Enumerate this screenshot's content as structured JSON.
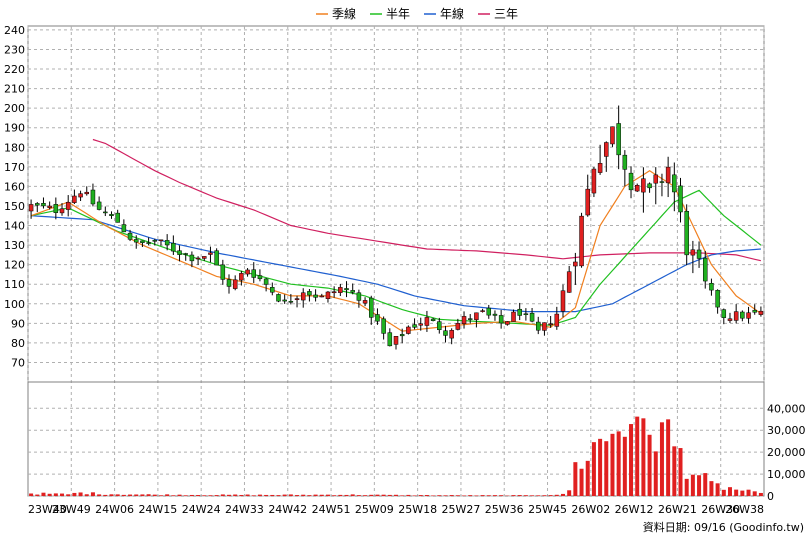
{
  "chart_data": {
    "type": "candlestick",
    "legend": [
      {
        "name": "季線",
        "color": "#f08020"
      },
      {
        "name": "半年",
        "color": "#20c020"
      },
      {
        "name": "年線",
        "color": "#2060d0"
      },
      {
        "name": "三年",
        "color": "#d02060"
      }
    ],
    "price_axis": {
      "ylim": [
        60,
        242
      ],
      "ticks": [
        70,
        80,
        90,
        100,
        110,
        120,
        130,
        140,
        150,
        160,
        170,
        180,
        190,
        200,
        210,
        220,
        230,
        240
      ]
    },
    "volume_axis": {
      "ylim": [
        0,
        52000
      ],
      "ticks": [
        0,
        10000,
        20000,
        30000,
        40000
      ],
      "tick_labels": [
        "0",
        "10,000",
        "20,000",
        "30,000",
        "40,000"
      ]
    },
    "x_ticks": [
      "23W40",
      "23W49",
      "24W06",
      "24W15",
      "24W24",
      "24W33",
      "24W42",
      "24W51",
      "25W09",
      "25W18",
      "25W27",
      "25W36",
      "25W45",
      "26W02",
      "26W12",
      "26W21",
      "26W30",
      "26W38"
    ],
    "grid": true,
    "colors": {
      "up": "#e02020",
      "down": "#20b020",
      "volume": "#e02020",
      "grid": "#b0b0b0"
    },
    "close_anchors": [
      [
        0,
        150
      ],
      [
        4,
        148
      ],
      [
        8,
        158
      ],
      [
        11,
        148
      ],
      [
        14,
        142
      ],
      [
        17,
        130
      ],
      [
        20,
        132
      ],
      [
        23,
        128
      ],
      [
        26,
        124
      ],
      [
        29,
        125
      ],
      [
        32,
        108
      ],
      [
        35,
        118
      ],
      [
        38,
        110
      ],
      [
        41,
        100
      ],
      [
        44,
        107
      ],
      [
        47,
        103
      ],
      [
        50,
        108
      ],
      [
        53,
        104
      ],
      [
        56,
        90
      ],
      [
        58,
        78
      ],
      [
        61,
        88
      ],
      [
        64,
        92
      ],
      [
        67,
        86
      ],
      [
        70,
        92
      ],
      [
        73,
        95
      ],
      [
        76,
        90
      ],
      [
        79,
        96
      ],
      [
        82,
        85
      ],
      [
        85,
        95
      ],
      [
        88,
        128
      ],
      [
        91,
        172
      ],
      [
        94,
        188
      ],
      [
        97,
        165
      ],
      [
        100,
        155
      ],
      [
        103,
        170
      ],
      [
        106,
        130
      ],
      [
        109,
        110
      ],
      [
        112,
        94
      ],
      [
        115,
        94
      ],
      [
        118,
        95
      ]
    ],
    "ma_quarter": [
      [
        0,
        145
      ],
      [
        6,
        152
      ],
      [
        12,
        140
      ],
      [
        18,
        130
      ],
      [
        24,
        122
      ],
      [
        30,
        114
      ],
      [
        36,
        110
      ],
      [
        42,
        104
      ],
      [
        48,
        104
      ],
      [
        53,
        100
      ],
      [
        56,
        94
      ],
      [
        60,
        86
      ],
      [
        66,
        88
      ],
      [
        72,
        90
      ],
      [
        78,
        91
      ],
      [
        84,
        88
      ],
      [
        88,
        98
      ],
      [
        92,
        140
      ],
      [
        96,
        160
      ],
      [
        100,
        168
      ],
      [
        104,
        160
      ],
      [
        110,
        120
      ],
      [
        114,
        104
      ],
      [
        118,
        95
      ]
    ],
    "ma_half": [
      [
        0,
        145
      ],
      [
        6,
        149
      ],
      [
        14,
        137
      ],
      [
        24,
        126
      ],
      [
        30,
        120
      ],
      [
        36,
        115
      ],
      [
        42,
        110
      ],
      [
        48,
        108
      ],
      [
        54,
        104
      ],
      [
        60,
        97
      ],
      [
        66,
        92
      ],
      [
        72,
        91
      ],
      [
        78,
        90
      ],
      [
        84,
        89
      ],
      [
        88,
        93
      ],
      [
        92,
        110
      ],
      [
        96,
        124
      ],
      [
        100,
        138
      ],
      [
        104,
        152
      ],
      [
        108,
        158
      ],
      [
        112,
        145
      ],
      [
        116,
        135
      ],
      [
        118,
        130
      ]
    ],
    "ma_year": [
      [
        0,
        145
      ],
      [
        10,
        143
      ],
      [
        20,
        133
      ],
      [
        30,
        126
      ],
      [
        40,
        120
      ],
      [
        50,
        114
      ],
      [
        56,
        110
      ],
      [
        62,
        104
      ],
      [
        70,
        99
      ],
      [
        80,
        96
      ],
      [
        88,
        96
      ],
      [
        94,
        100
      ],
      [
        100,
        110
      ],
      [
        106,
        120
      ],
      [
        110,
        125
      ],
      [
        114,
        127
      ],
      [
        118,
        128
      ]
    ],
    "ma_3year": [
      [
        10,
        184
      ],
      [
        12,
        182
      ],
      [
        16,
        175
      ],
      [
        20,
        168
      ],
      [
        24,
        162
      ],
      [
        30,
        154
      ],
      [
        36,
        148
      ],
      [
        42,
        140
      ],
      [
        48,
        136
      ],
      [
        56,
        132
      ],
      [
        64,
        128
      ],
      [
        72,
        127
      ],
      [
        80,
        125
      ],
      [
        86,
        123
      ],
      [
        92,
        125
      ],
      [
        100,
        126
      ],
      [
        108,
        126
      ],
      [
        114,
        125
      ],
      [
        118,
        122
      ]
    ],
    "volume_anchors": [
      [
        0,
        1200
      ],
      [
        6,
        800
      ],
      [
        8,
        1500
      ],
      [
        12,
        900
      ],
      [
        20,
        600
      ],
      [
        30,
        500
      ],
      [
        40,
        500
      ],
      [
        50,
        600
      ],
      [
        60,
        400
      ],
      [
        70,
        300
      ],
      [
        80,
        300
      ],
      [
        86,
        700
      ],
      [
        87,
        3000
      ],
      [
        88,
        13000
      ],
      [
        90,
        20000
      ],
      [
        92,
        24000
      ],
      [
        94,
        30000
      ],
      [
        96,
        34000
      ],
      [
        97,
        42000
      ],
      [
        98,
        26000
      ],
      [
        100,
        33000
      ],
      [
        103,
        27000
      ],
      [
        106,
        14000
      ],
      [
        110,
        5000
      ],
      [
        118,
        1000
      ]
    ]
  },
  "footer": {
    "label": "資料日期: 09/16 (Goodinfo.tw)"
  }
}
